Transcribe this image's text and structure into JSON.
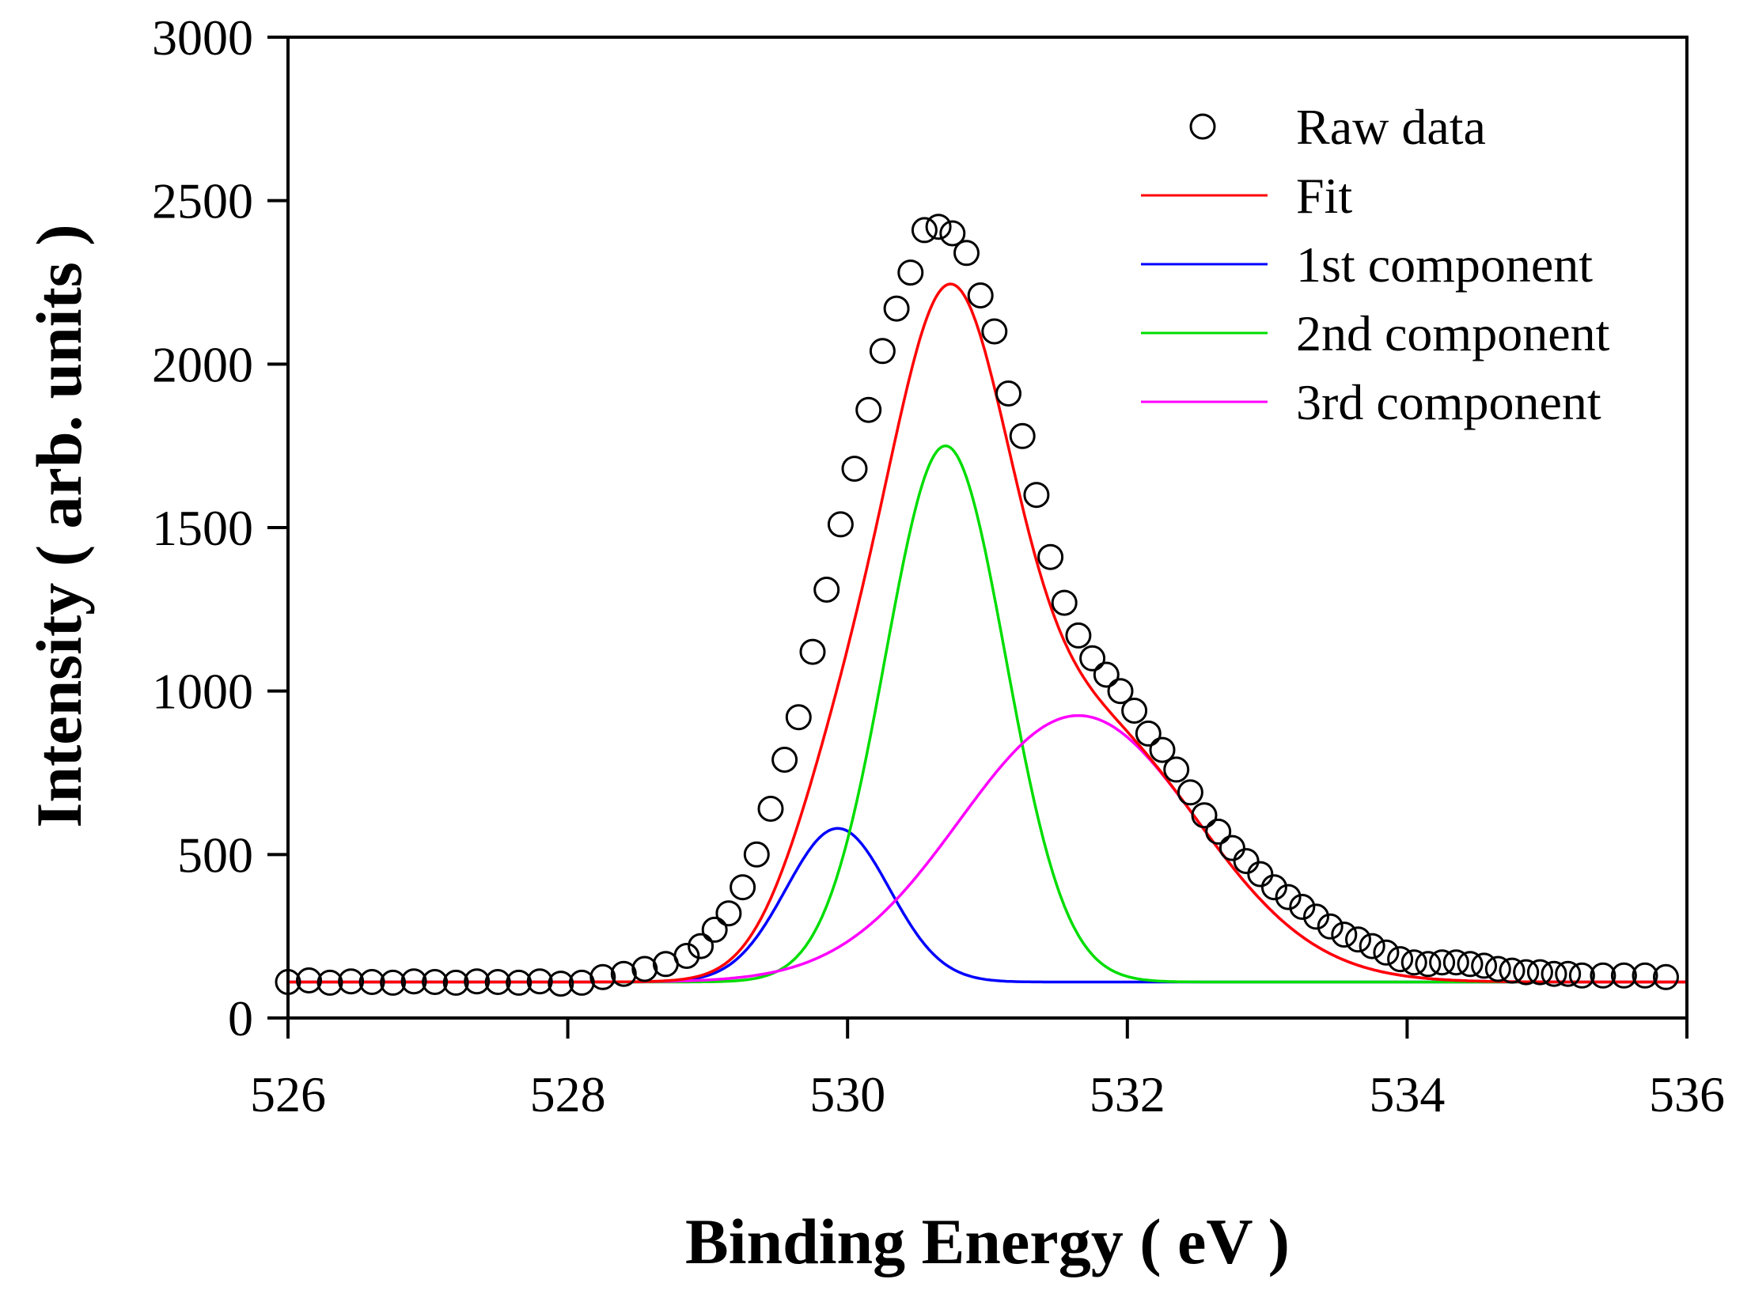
{
  "chart_data": {
    "type": "line",
    "title": "",
    "xlabel": "Binding Energy ( eV )",
    "ylabel": "Intensity ( arb. units )",
    "xlim": [
      526,
      536
    ],
    "ylim": [
      0,
      3000
    ],
    "xticks": [
      526,
      528,
      530,
      532,
      534,
      536
    ],
    "yticks": [
      0,
      500,
      1000,
      1500,
      2000,
      2500,
      3000
    ],
    "grid": false,
    "legend_position": "top-right",
    "baseline": 110,
    "colors": {
      "raw": "#000000",
      "fit": "#ff0000",
      "c1": "#0000ff",
      "c2": "#00dd00",
      "c3": "#ff00ff"
    },
    "legend": [
      "Raw data",
      "Fit",
      "1st component",
      "2nd component",
      "3rd component"
    ],
    "components": [
      {
        "name": "1st component",
        "center": 529.93,
        "amplitude": 470,
        "sigma": 0.37
      },
      {
        "name": "2nd component",
        "center": 530.7,
        "amplitude": 1640,
        "sigma": 0.43
      },
      {
        "name": "3rd component",
        "center": 531.65,
        "amplitude": 815,
        "sigma": 0.85
      }
    ],
    "raw_data": {
      "x": [
        526.0,
        526.15,
        526.3,
        526.45,
        526.6,
        526.75,
        526.9,
        527.05,
        527.2,
        527.35,
        527.5,
        527.65,
        527.8,
        527.95,
        528.1,
        528.25,
        528.4,
        528.55,
        528.7,
        528.85,
        528.95,
        529.05,
        529.15,
        529.25,
        529.35,
        529.45,
        529.55,
        529.65,
        529.75,
        529.85,
        529.95,
        530.05,
        530.15,
        530.25,
        530.35,
        530.45,
        530.55,
        530.65,
        530.75,
        530.85,
        530.95,
        531.05,
        531.15,
        531.25,
        531.35,
        531.45,
        531.55,
        531.65,
        531.75,
        531.85,
        531.95,
        532.05,
        532.15,
        532.25,
        532.35,
        532.45,
        532.55,
        532.65,
        532.75,
        532.85,
        532.95,
        533.05,
        533.15,
        533.25,
        533.35,
        533.45,
        533.55,
        533.65,
        533.75,
        533.85,
        533.95,
        534.05,
        534.15,
        534.25,
        534.35,
        534.45,
        534.55,
        534.65,
        534.75,
        534.85,
        534.95,
        535.05,
        535.15,
        535.25,
        535.4,
        535.55,
        535.7,
        535.85
      ],
      "y": [
        110,
        115,
        108,
        112,
        110,
        108,
        112,
        110,
        108,
        112,
        110,
        108,
        112,
        105,
        108,
        125,
        135,
        150,
        165,
        190,
        220,
        270,
        320,
        400,
        500,
        640,
        790,
        920,
        1120,
        1310,
        1510,
        1680,
        1860,
        2040,
        2170,
        2280,
        2410,
        2420,
        2400,
        2340,
        2210,
        2100,
        1910,
        1780,
        1600,
        1410,
        1270,
        1170,
        1100,
        1050,
        1000,
        940,
        870,
        820,
        760,
        690,
        620,
        570,
        520,
        480,
        440,
        400,
        370,
        340,
        310,
        280,
        255,
        240,
        220,
        200,
        180,
        170,
        165,
        170,
        170,
        165,
        160,
        150,
        145,
        140,
        140,
        135,
        135,
        130,
        130,
        130,
        130,
        125
      ]
    }
  }
}
